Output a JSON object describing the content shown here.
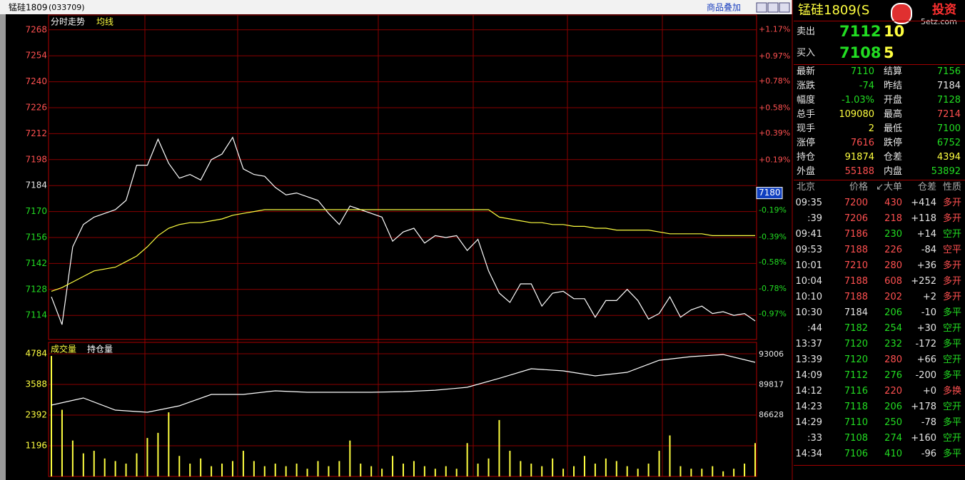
{
  "header": {
    "title": "锰硅1809",
    "code": "(033709)",
    "overlay": "商品叠加"
  },
  "chart_data": [
    {
      "type": "line",
      "series": [
        {
          "name": "分时走势",
          "color": "#ffffff",
          "values": [
            7124,
            7109,
            7151,
            7163,
            7167,
            7169,
            7171,
            7176,
            7195,
            7195,
            7209,
            7196,
            7188,
            7190,
            7187,
            7198,
            7201,
            7210,
            7193,
            7190,
            7189,
            7183,
            7179,
            7180,
            7178,
            7176,
            7169,
            7163,
            7173,
            7171,
            7169,
            7167,
            7154,
            7159,
            7161,
            7153,
            7157,
            7156,
            7157,
            7149,
            7155,
            7138,
            7126,
            7121,
            7131,
            7131,
            7119,
            7126,
            7127,
            7123,
            7123,
            7113,
            7122,
            7122,
            7128,
            7122,
            7112,
            7115,
            7124,
            7113,
            7117,
            7119,
            7115,
            7116,
            7114,
            7115,
            7111
          ]
        },
        {
          "name": "均线",
          "color": "#ffff40",
          "values": [
            7127,
            7129,
            7132,
            7135,
            7138,
            7139,
            7140,
            7143,
            7146,
            7151,
            7157,
            7161,
            7163,
            7164,
            7164,
            7165,
            7166,
            7168,
            7169,
            7170,
            7171,
            7171,
            7171,
            7171,
            7171,
            7171,
            7171,
            7171,
            7171,
            7171,
            7171,
            7171,
            7171,
            7171,
            7171,
            7171,
            7171,
            7171,
            7171,
            7171,
            7171,
            7171,
            7167,
            7166,
            7165,
            7164,
            7164,
            7163,
            7163,
            7162,
            7162,
            7161,
            7161,
            7160,
            7160,
            7160,
            7160,
            7159,
            7158,
            7158,
            7158,
            7158,
            7157,
            7157,
            7157,
            7157,
            7157
          ]
        }
      ],
      "ylim": [
        7101,
        7276
      ],
      "yticks": [
        7268,
        7254,
        7240,
        7226,
        7212,
        7198,
        7184,
        7170,
        7156,
        7142,
        7128,
        7114
      ],
      "y2lim": [
        -1.16,
        1.28
      ],
      "y2ticks": [
        {
          "value": 1.17,
          "label": "+1.17%"
        },
        {
          "value": 0.97,
          "label": "+0.97%"
        },
        {
          "value": 0.78,
          "label": "+0.78%"
        },
        {
          "value": 0.58,
          "label": "+0.58%"
        },
        {
          "value": 0.39,
          "label": "+0.39%"
        },
        {
          "value": 0.19,
          "label": "+0.19%"
        },
        {
          "value": -0.19,
          "label": "-0.19%"
        },
        {
          "value": -0.39,
          "label": "-0.39%"
        },
        {
          "value": -0.58,
          "label": "-0.58%"
        },
        {
          "value": -0.78,
          "label": "-0.78%"
        },
        {
          "value": -0.97,
          "label": "-0.97%"
        }
      ],
      "price_tag": 7180,
      "grid": true
    },
    {
      "type": "bar",
      "series": [
        {
          "name": "成交量",
          "color": "#ffff40",
          "values": [
            4700,
            2600,
            1400,
            900,
            1000,
            700,
            600,
            500,
            900,
            1500,
            1700,
            2500,
            800,
            500,
            700,
            400,
            500,
            600,
            1000,
            600,
            400,
            500,
            400,
            500,
            300,
            600,
            400,
            600,
            1400,
            500,
            400,
            300,
            800,
            500,
            600,
            400,
            300,
            400,
            300,
            1300,
            500,
            700,
            2200,
            1000,
            600,
            500,
            400,
            700,
            300,
            400,
            800,
            500,
            700,
            600,
            400,
            300,
            500,
            1000,
            1600,
            400,
            300,
            300,
            400,
            200,
            300,
            500,
            1300
          ]
        },
        {
          "name": "持仓量",
          "color": "#ffffff",
          "axis": "y2",
          "values": [
            87678,
            88428,
            87153,
            86928,
            87600,
            88804,
            88804,
            89179,
            89029,
            89029,
            89029,
            89100,
            89250,
            89554,
            90500,
            91505,
            91280,
            90755,
            91130,
            92400,
            92780,
            93000,
            92181
          ]
        }
      ],
      "ylim": [
        0,
        5230
      ],
      "yticks": [
        4784,
        3588,
        2392,
        1196
      ],
      "y2lim": [
        80175,
        94282
      ],
      "y2ticks": [
        93006,
        89817,
        86628
      ],
      "grid": true
    }
  ],
  "quote": {
    "title": "锰硅1809(S",
    "logo": "投资",
    "site": "5etz.com",
    "ask": {
      "label": "卖出",
      "price": 7112,
      "volume": 10
    },
    "bid": {
      "label": "买入",
      "price": 7108,
      "volume": 5
    },
    "stats": [
      [
        "最新",
        7110,
        "结算",
        7156
      ],
      [
        "涨跌",
        -74,
        "昨结",
        7184
      ],
      [
        "幅度",
        "-1.03%",
        "开盘",
        7128
      ],
      [
        "总手",
        109080,
        "最高",
        7214
      ],
      [
        "现手",
        2,
        "最低",
        7100
      ],
      [
        "涨停",
        7616,
        "跌停",
        6752
      ],
      [
        "持仓",
        91874,
        "仓差",
        4394
      ],
      [
        "外盘",
        55188,
        "内盘",
        53892
      ]
    ],
    "trades": {
      "header": [
        "北京",
        "价格",
        "↙大单",
        "仓差",
        "性质"
      ],
      "rows": [
        [
          "09:35",
          7200,
          430,
          "+414",
          "多开"
        ],
        [
          ":39",
          7206,
          218,
          "+118",
          "多开"
        ],
        [
          "09:41",
          7186,
          230,
          "+14",
          "空开"
        ],
        [
          "09:53",
          7188,
          226,
          "-84",
          "空平"
        ],
        [
          "10:01",
          7210,
          280,
          "+36",
          "多开"
        ],
        [
          "10:04",
          7188,
          608,
          "+252",
          "多开"
        ],
        [
          "10:10",
          7188,
          202,
          "+2",
          "多开"
        ],
        [
          "10:30",
          7184,
          206,
          "-10",
          "多平"
        ],
        [
          ":44",
          7182,
          254,
          "+30",
          "空开"
        ],
        [
          "13:37",
          7120,
          232,
          "-172",
          "多平"
        ],
        [
          "13:39",
          7120,
          280,
          "+66",
          "空开"
        ],
        [
          "14:09",
          7112,
          276,
          "-200",
          "多平"
        ],
        [
          "14:12",
          7116,
          220,
          "+0",
          "多换"
        ],
        [
          "14:23",
          7118,
          206,
          "+178",
          "空开"
        ],
        [
          "14:29",
          7110,
          250,
          "-78",
          "多平"
        ],
        [
          ":33",
          7108,
          274,
          "+160",
          "空开"
        ],
        [
          "14:34",
          7106,
          410,
          "-96",
          "多平"
        ]
      ]
    }
  }
}
